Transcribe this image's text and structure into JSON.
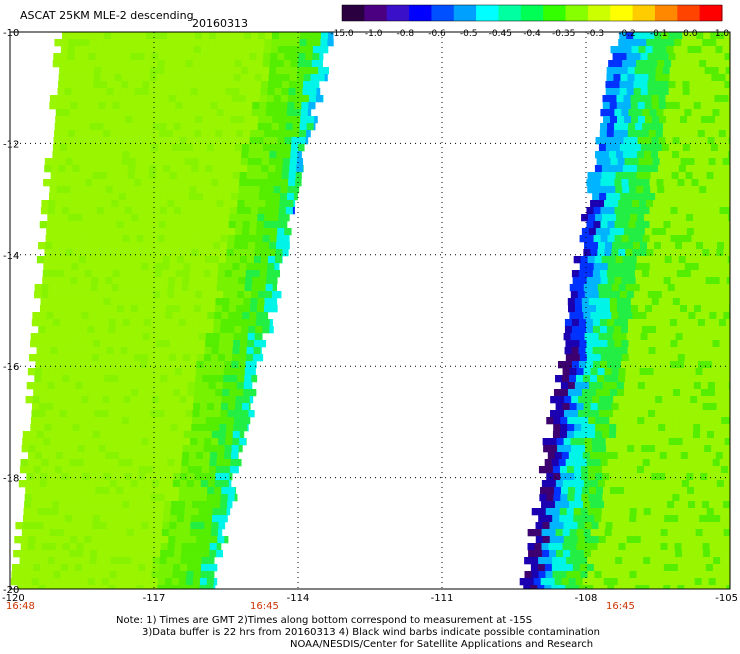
{
  "header": {
    "title": "ASCAT 25KM MLE-2 descending",
    "date": "20160313"
  },
  "colorbar": {
    "labels": [
      "-15.0",
      "-1.0",
      "-0.8",
      "-0.6",
      "-0.5",
      "-0.45",
      "-0.4",
      "-0.35",
      "-0.3",
      "-0.2",
      "-0.1",
      "0.0",
      "1.0"
    ],
    "colors": [
      "#2a0040",
      "#4b0082",
      "#3a10c8",
      "#0000ff",
      "#0050ff",
      "#00a0ff",
      "#00ffff",
      "#00ffa0",
      "#00ff55",
      "#33ff00",
      "#88ff00",
      "#ccff00",
      "#ffff00",
      "#ffcc00",
      "#ff8800",
      "#ff4400",
      "#ff0000"
    ]
  },
  "map": {
    "lat_labels": [
      "-10",
      "-12",
      "-14",
      "-16",
      "-18",
      "-20"
    ],
    "lon_labels": [
      "-120",
      "-117",
      "-114",
      "-111",
      "-108",
      "-105"
    ],
    "time_labels": [
      "16:48",
      "16:45",
      "16:45"
    ],
    "time_color": "#cc3300",
    "palette": {
      "green_base": "#99f500",
      "green_mid": "#55ee00",
      "green_edge": "#22ee44",
      "cyan": "#00f5e8",
      "light_blue": "#00b4ff",
      "blue": "#0032ff",
      "dark_blue": "#1a00b0",
      "purple": "#3d0070"
    }
  },
  "notes": [
    "Note: 1) Times are GMT 2)Times along bottom correspond to measurement at -15S",
    "3)Data buffer is 22 hrs from 20160313 4) Black wind barbs indicate possible contamination",
    "NOAA/NESDIS/Center for Satellite Applications and Research"
  ]
}
